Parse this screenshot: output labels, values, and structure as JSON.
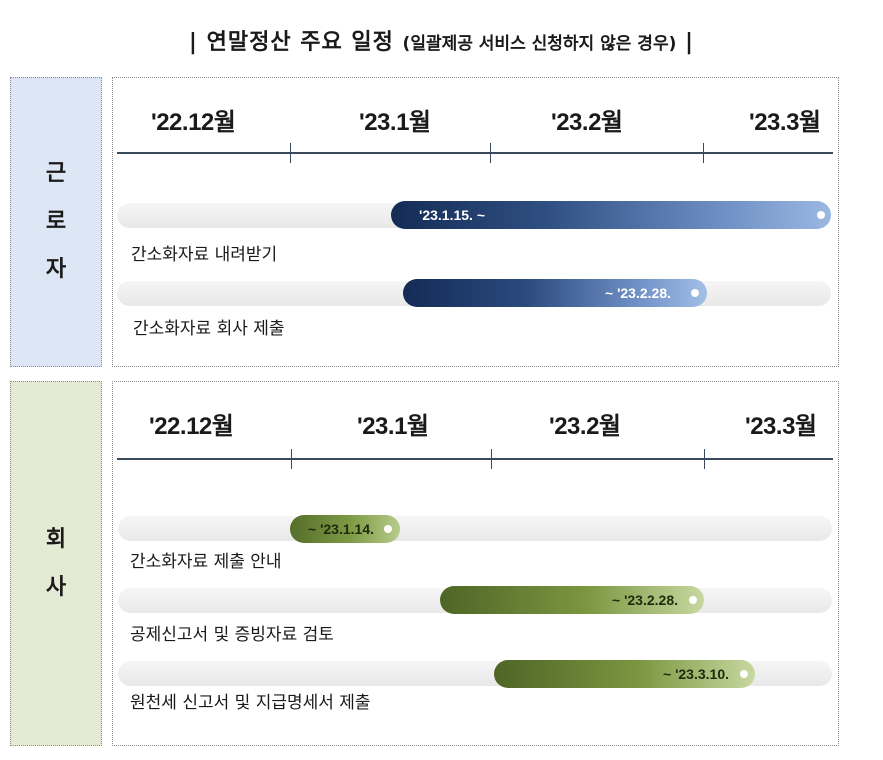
{
  "title": {
    "bar_left": "|",
    "main": "연말정산 주요 일정",
    "sub": "(일괄제공 서비스 신청하지 않은 경우)",
    "bar_right": "|"
  },
  "months": [
    "'22.12월",
    "'23.1월",
    "'23.2월",
    "'23.3월"
  ],
  "sections": {
    "worker": {
      "label_chars": [
        "근",
        "로",
        "자"
      ],
      "tasks": [
        {
          "label": "간소화자료 내려받기",
          "date": "'23.1.15. ~"
        },
        {
          "label": "간소화자료 회사 제출",
          "date": "~ '23.2.28."
        }
      ]
    },
    "company": {
      "label_chars": [
        "회",
        "사"
      ],
      "tasks": [
        {
          "label": "간소화자료 제출 안내",
          "date": "~ '23.1.14."
        },
        {
          "label": "공제신고서 및 증빙자료 검토",
          "date": "~ '23.2.28."
        },
        {
          "label": "원천세 신고서 및 지급명세서 제출",
          "date": "~ '23.3.10."
        }
      ]
    }
  },
  "colors": {
    "worker_bar": "#142b55",
    "company_bar": "#6a8636",
    "worker_label_bg": "#dce6f4",
    "company_label_bg": "#e4ead4"
  }
}
